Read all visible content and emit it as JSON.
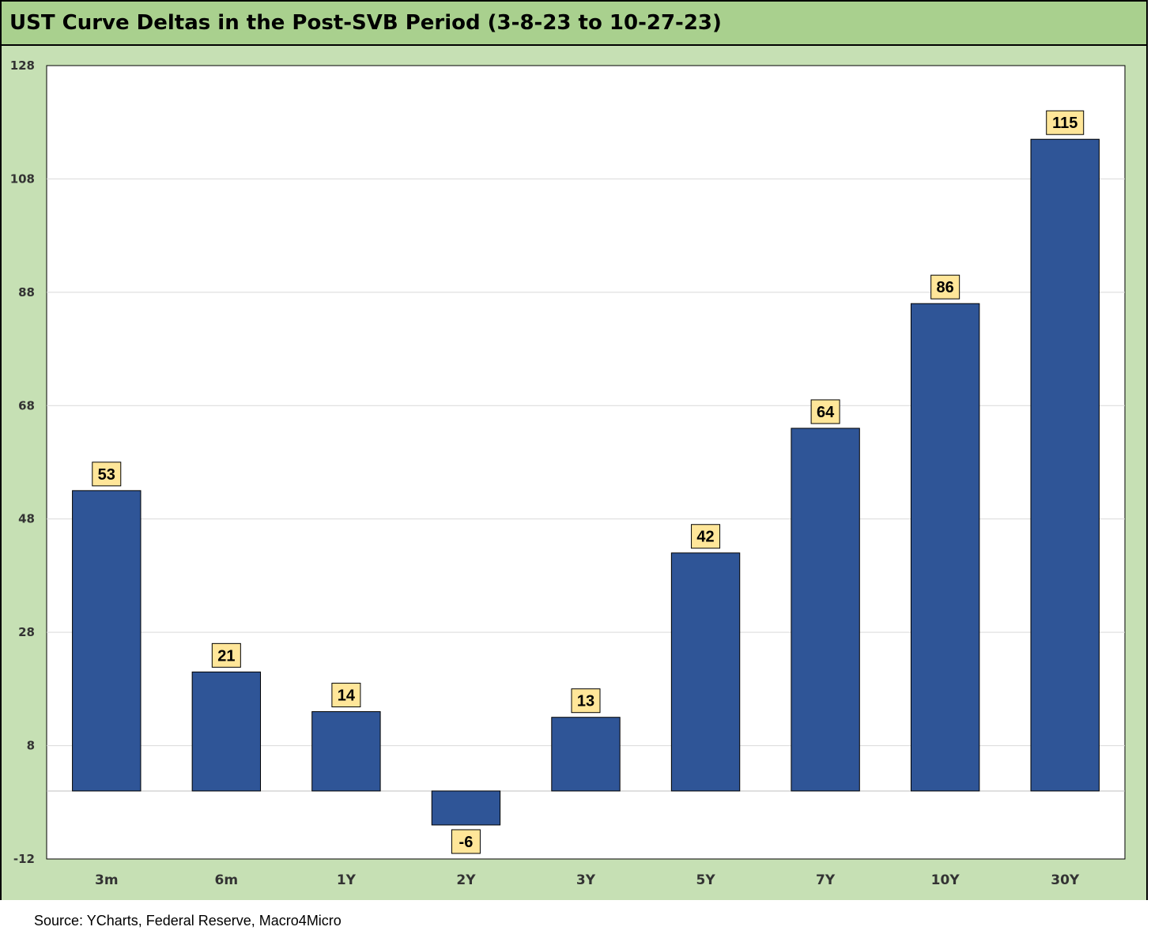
{
  "title": "UST Curve Deltas in the Post-SVB Period (3-8-23 to 10-27-23)",
  "source": "Source: YCharts, Federal Reserve, Macro4Micro",
  "colors": {
    "title_bg": "#a9d08e",
    "chart_bg": "#c6e0b4",
    "plot_bg": "#ffffff",
    "bar_fill": "#2f5597",
    "label_bg": "#ffe699"
  },
  "chart_data": {
    "type": "bar",
    "categories": [
      "3m",
      "6m",
      "1Y",
      "2Y",
      "3Y",
      "5Y",
      "7Y",
      "10Y",
      "30Y"
    ],
    "values": [
      53,
      21,
      14,
      -6,
      13,
      42,
      64,
      86,
      115
    ],
    "data_labels": [
      "53",
      "21",
      "14",
      "-6",
      "13",
      "42",
      "64",
      "86",
      "115"
    ],
    "ylim": [
      -12,
      128
    ],
    "yticks": [
      -12,
      8,
      28,
      48,
      68,
      88,
      108,
      128
    ],
    "ytick_labels": [
      "-12",
      "8",
      "28",
      "48",
      "68",
      "88",
      "108",
      "128"
    ],
    "grid": true,
    "legend": "none",
    "xlabel": "",
    "ylabel": ""
  }
}
